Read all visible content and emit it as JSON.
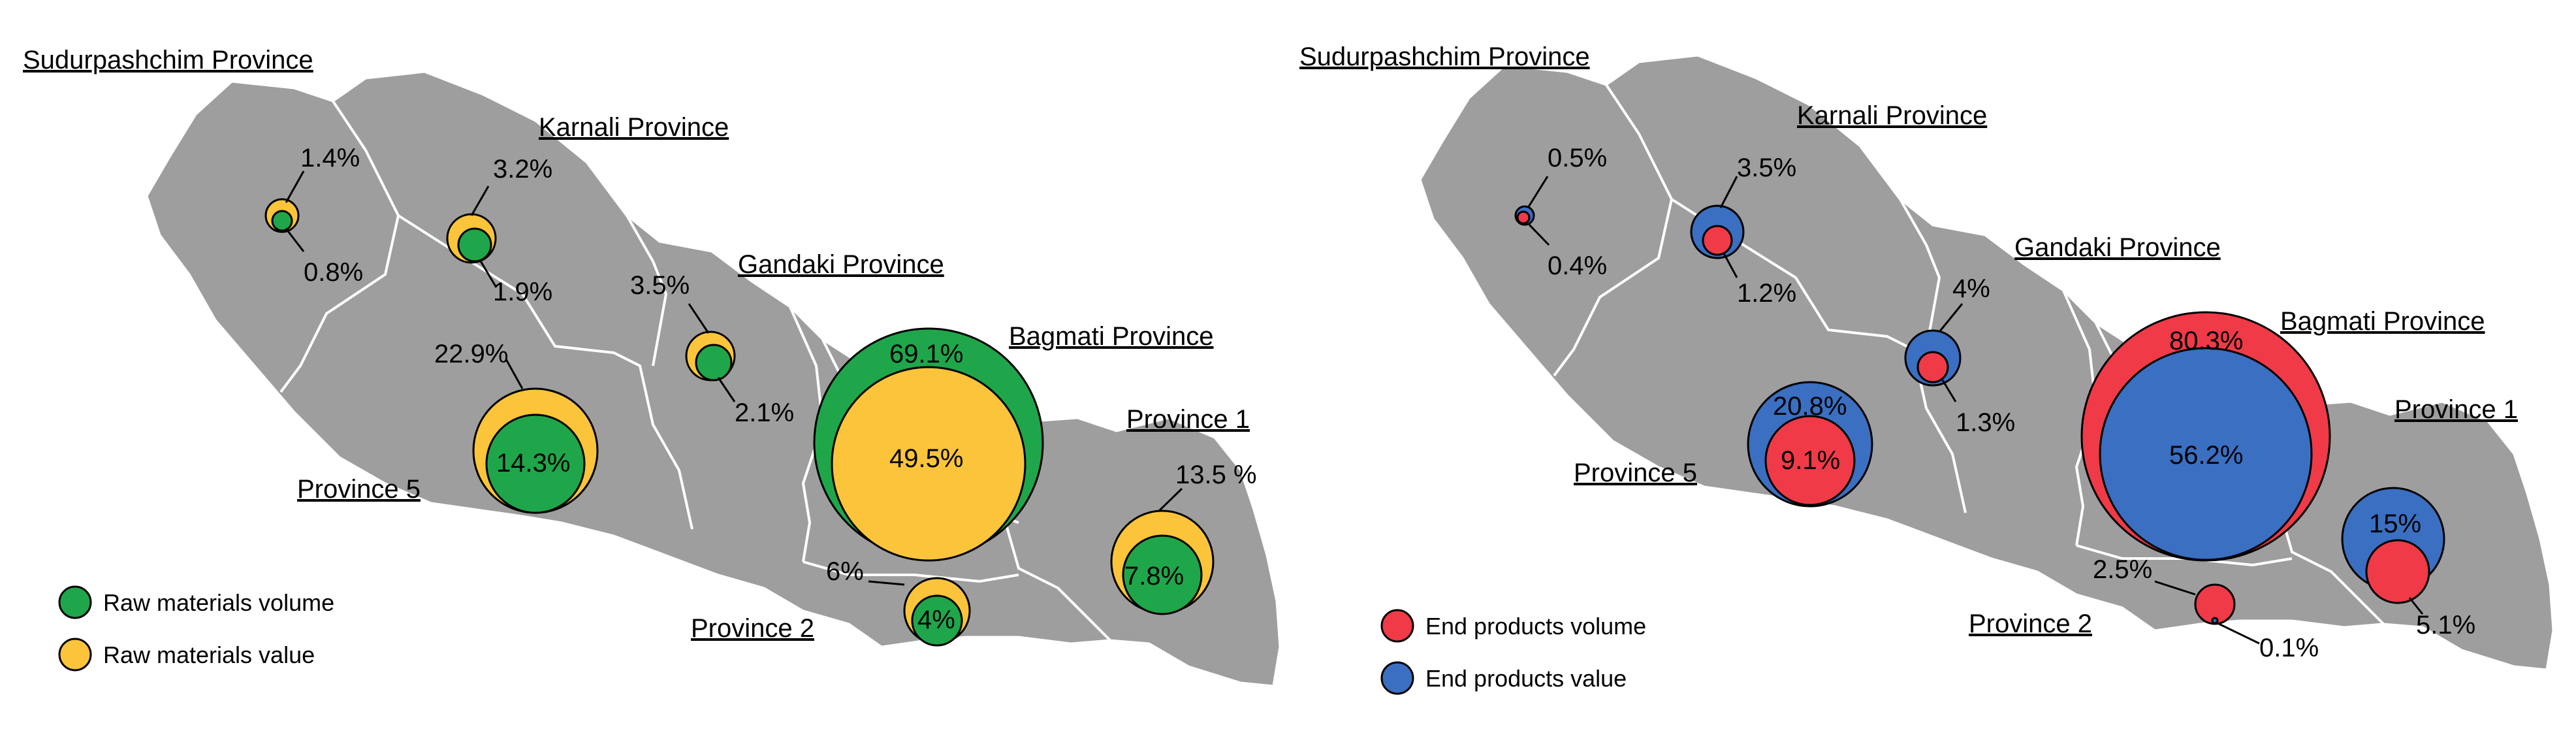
{
  "colors": {
    "map_fill": "#9e9e9e",
    "border": "#ffffff",
    "raw_volume": "#1fa64a",
    "raw_value": "#fbc43a",
    "end_volume": "#f03a47",
    "end_value": "#3a6fc2"
  },
  "left_map": {
    "provinces": {
      "sudurpashchim": "Sudurpashchim Province",
      "karnali": "Karnali Province",
      "gandaki": "Gandaki Province",
      "bagmati": "Bagmati Province",
      "province1": "Province 1",
      "province5": "Province 5",
      "province2": "Province 2"
    },
    "values": {
      "sud_value": "1.4%",
      "sud_volume": "0.8%",
      "kar_value": "3.2%",
      "kar_volume": "1.9%",
      "gan_value": "3.5%",
      "gan_volume": "2.1%",
      "bag_volume": "69.1%",
      "bag_value": "49.5%",
      "p1_value": "13.5 %",
      "p1_volume": "7.8%",
      "p5_value": "22.9%",
      "p5_volume": "14.3%",
      "p2_value": "6%",
      "p2_volume": "4%"
    },
    "legend": {
      "volume": "Raw materials volume",
      "value": "Raw materials value"
    }
  },
  "right_map": {
    "provinces": {
      "sudurpashchim": "Sudurpashchim Province",
      "karnali": "Karnali Province",
      "gandaki": "Gandaki Province",
      "bagmati": "Bagmati Province",
      "province1": "Province 1",
      "province5": "Province 5",
      "province2": "Province 2"
    },
    "values": {
      "sud_value": "0.5%",
      "sud_volume": "0.4%",
      "kar_value": "3.5%",
      "kar_volume": "1.2%",
      "gan_value": "4%",
      "gan_volume": "1.3%",
      "bag_volume": "80.3%",
      "bag_value": "56.2%",
      "p1_value": "15%",
      "p1_volume": "5.1%",
      "p5_value": "20.8%",
      "p5_volume": "9.1%",
      "p2_value": "2.5%",
      "p2_volume": "0.1%"
    },
    "legend": {
      "volume": "End products volume",
      "value": "End products value"
    }
  }
}
